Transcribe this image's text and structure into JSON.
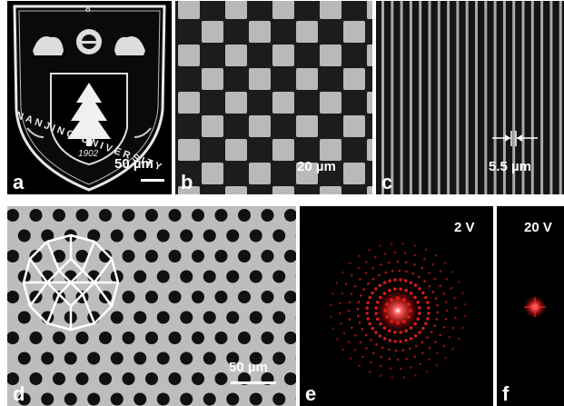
{
  "panels": {
    "a": {
      "label": "a",
      "scale_text": "50 µm",
      "logo_text": "NANJING UNIVERSITY",
      "logo_year": "1902",
      "logo_top": "8"
    },
    "b": {
      "label": "b",
      "scale_text": "20 µm"
    },
    "c": {
      "label": "c",
      "scale_text": "5.5 µm"
    },
    "d": {
      "label": "d",
      "scale_text": "50 µm"
    },
    "e": {
      "label": "e",
      "voltage": "2 V"
    },
    "f": {
      "label": "f",
      "voltage": "20 V"
    }
  },
  "colors": {
    "background": "#000000",
    "checker_light": "#b9b9b9",
    "checker_dark": "#1c1c1c",
    "diffraction": "#ff2020",
    "hole_field": "#bdbdbd",
    "hole": "#111111"
  }
}
